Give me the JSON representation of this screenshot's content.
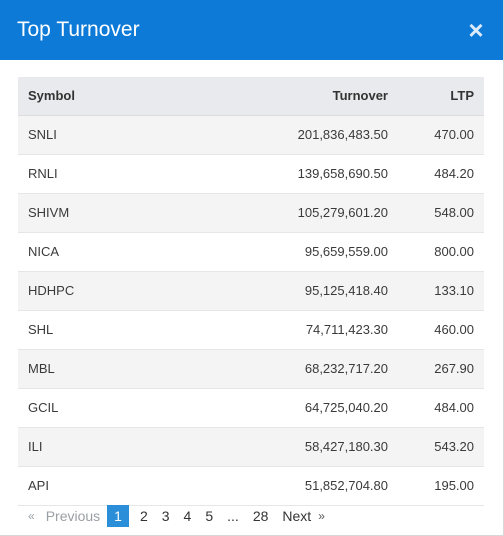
{
  "modal": {
    "title": "Top Turnover",
    "close_label": "×"
  },
  "table": {
    "headers": {
      "symbol": "Symbol",
      "turnover": "Turnover",
      "ltp": "LTP"
    },
    "rows": [
      {
        "symbol": "SNLI",
        "turnover": "201,836,483.50",
        "ltp": "470.00"
      },
      {
        "symbol": "RNLI",
        "turnover": "139,658,690.50",
        "ltp": "484.20"
      },
      {
        "symbol": "SHIVM",
        "turnover": "105,279,601.20",
        "ltp": "548.00"
      },
      {
        "symbol": "NICA",
        "turnover": "95,659,559.00",
        "ltp": "800.00"
      },
      {
        "symbol": "HDHPC",
        "turnover": "95,125,418.40",
        "ltp": "133.10"
      },
      {
        "symbol": "SHL",
        "turnover": "74,711,423.30",
        "ltp": "460.00"
      },
      {
        "symbol": "MBL",
        "turnover": "68,232,717.20",
        "ltp": "267.90"
      },
      {
        "symbol": "GCIL",
        "turnover": "64,725,040.20",
        "ltp": "484.00"
      },
      {
        "symbol": "ILI",
        "turnover": "58,427,180.30",
        "ltp": "543.20"
      },
      {
        "symbol": "API",
        "turnover": "51,852,704.80",
        "ltp": "195.00"
      }
    ]
  },
  "pagination": {
    "prev_chevron": "«",
    "previous": "Previous",
    "pages": [
      "1",
      "2",
      "3",
      "4",
      "5"
    ],
    "ellipsis": "...",
    "last_page": "28",
    "next": "Next",
    "next_chevron": "»",
    "current_page": "1"
  }
}
